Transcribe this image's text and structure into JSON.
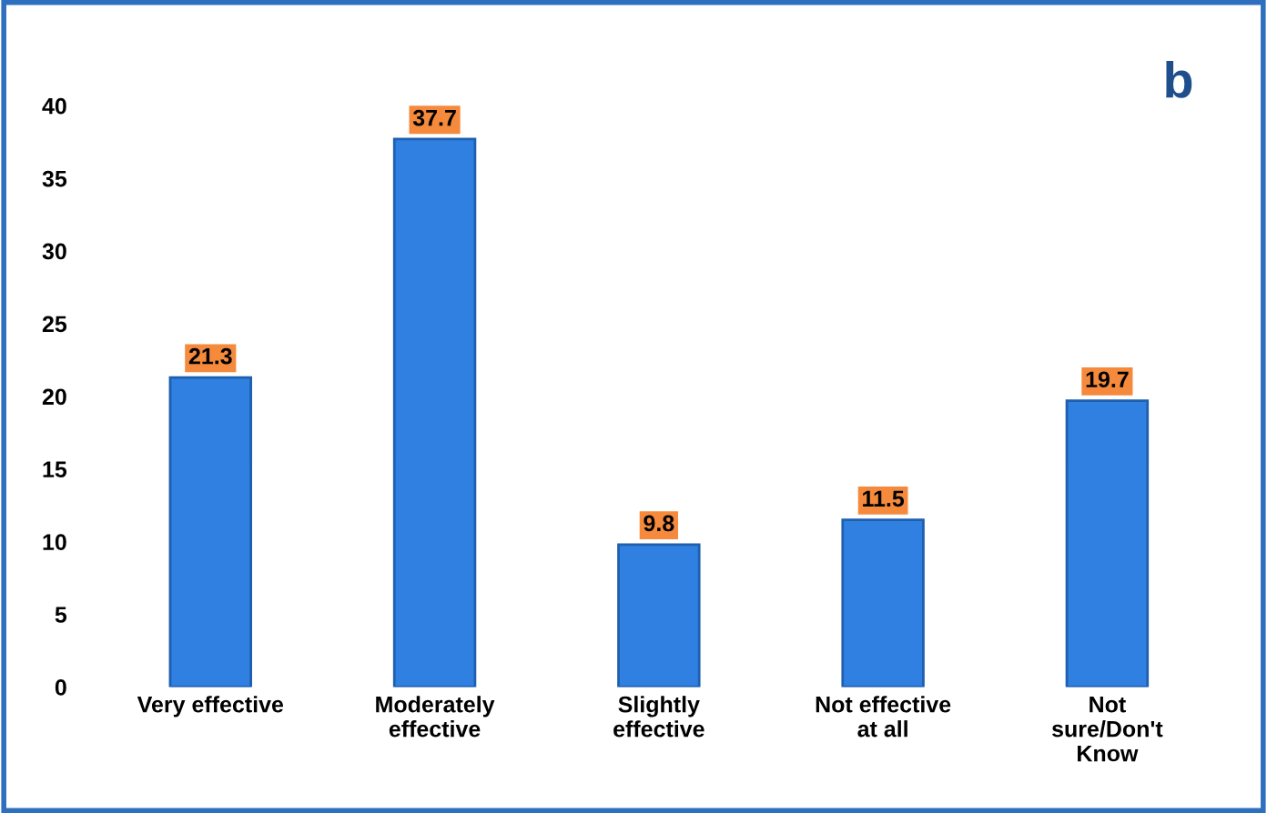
{
  "chart_data": {
    "type": "bar",
    "categories": [
      "Very effective",
      "Moderately\neffective",
      "Slightly\neffective",
      "Not effective\nat all",
      "Not\nsure/Don't\nKnow"
    ],
    "values": [
      21.3,
      37.7,
      9.8,
      11.5,
      19.7
    ],
    "color": "#2f80e0",
    "data_labels": true,
    "ylim": [
      0,
      40
    ],
    "yticks": [
      0,
      5,
      10,
      15,
      20,
      25,
      30,
      35,
      40
    ],
    "grid": false,
    "legend": false,
    "annotations": [
      "b"
    ]
  }
}
